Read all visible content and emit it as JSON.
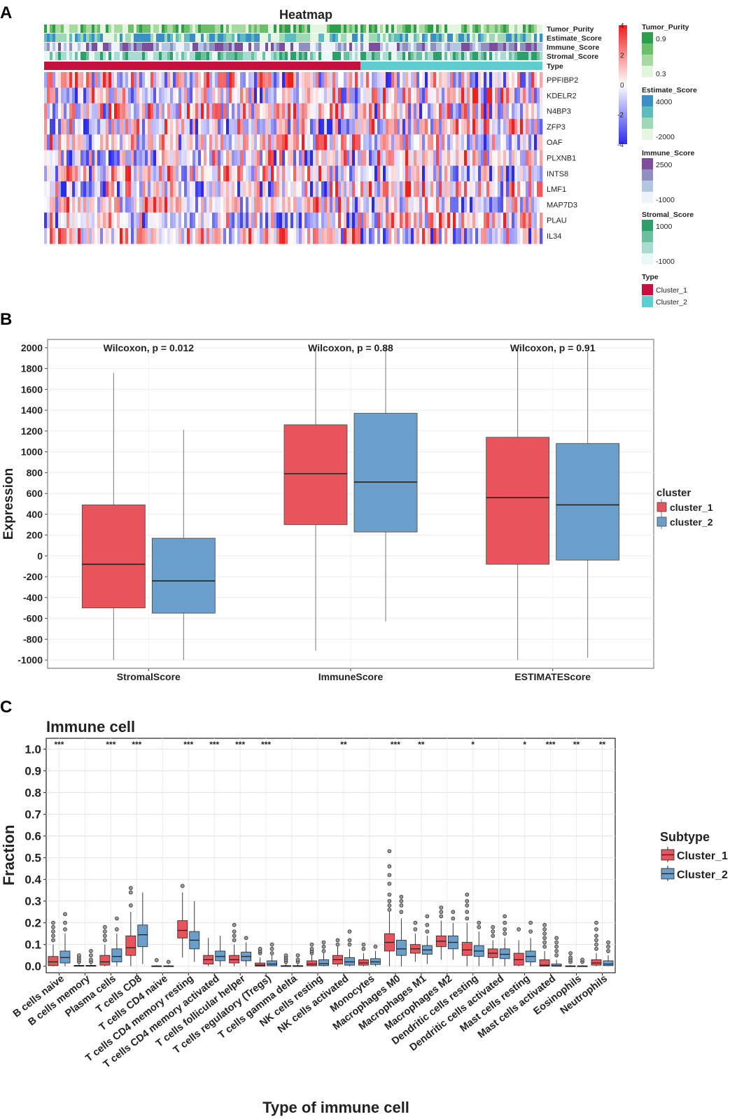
{
  "panel_labels": {
    "a": "A",
    "b": "B",
    "c": "C"
  },
  "colors": {
    "cluster1": "#e8545c",
    "cluster2": "#6a9fcc",
    "type_cluster1": "#c8103e",
    "type_cluster2": "#5fcdcf",
    "heat_low": "#2b2bf0",
    "heat_mid": "#ffffff",
    "heat_high": "#f02020"
  },
  "chart_data": [
    {
      "type": "heatmap",
      "title": "Heatmap",
      "annotation_rows": [
        "Tumor_Purity",
        "Estimate_Score",
        "Immune_Score",
        "Stromal_Score",
        "Type"
      ],
      "genes": [
        "PPFIBP2",
        "KDELR2",
        "N4BP3",
        "ZFP3",
        "OAF",
        "PLXNB1",
        "INTS8",
        "LMF1",
        "MAP7D3",
        "PLAU",
        "IL34"
      ],
      "color_scale": {
        "ticks": [
          4,
          2,
          0,
          -2,
          -4
        ],
        "range": [
          -4,
          4
        ]
      },
      "cluster_split_fraction": 0.635,
      "legends": [
        {
          "title": "Tumor_Purity",
          "high": "0.9",
          "low": "0.3",
          "colors": [
            "#2e9e4e",
            "#6bbf6b",
            "#a6daa0",
            "#e3f4df"
          ]
        },
        {
          "title": "Estimate_Score",
          "high": "4000",
          "low": "-2000",
          "colors": [
            "#3b8fc4",
            "#5fbcbc",
            "#9fd8b4",
            "#e5f5e0"
          ]
        },
        {
          "title": "Immune_Score",
          "high": "2500",
          "low": "-1000",
          "colors": [
            "#7d4e9e",
            "#8f8fc2",
            "#b3c6e2",
            "#eef2fa"
          ]
        },
        {
          "title": "Stromal_Score",
          "high": "1000",
          "low": "-1000",
          "colors": [
            "#2e9e6a",
            "#6cc0a0",
            "#a8dcd0",
            "#eaf7f4"
          ]
        }
      ],
      "type_legend": {
        "title": "Type",
        "items": [
          "Cluster_1",
          "Cluster_2"
        ]
      }
    },
    {
      "type": "box",
      "categories": [
        "StromalScore",
        "ImmuneScore",
        "ESTIMATEScore"
      ],
      "annotations": [
        "Wilcoxon, p = 0.012",
        "Wilcoxon, p = 0.88",
        "Wilcoxon, p = 0.91"
      ],
      "ylabel": "Expression",
      "ylim": [
        -1080,
        2080
      ],
      "yticks": [
        2000,
        1800,
        1600,
        1400,
        1200,
        1000,
        800,
        600,
        400,
        200,
        0,
        -200,
        -400,
        -600,
        -800,
        -1000
      ],
      "legend": {
        "title": "cluster",
        "items": [
          "cluster_1",
          "cluster_2"
        ]
      },
      "series": [
        {
          "name": "cluster_1",
          "boxes": [
            {
              "min": -1000,
              "q1": -500,
              "median": -80,
              "q3": 490,
              "max": 1760
            },
            {
              "min": -910,
              "q1": 300,
              "median": 790,
              "q3": 1260,
              "max": 2000
            },
            {
              "min": -1000,
              "q1": -80,
              "median": 560,
              "q3": 1140,
              "max": 2000
            }
          ]
        },
        {
          "name": "cluster_2",
          "boxes": [
            {
              "min": -1000,
              "q1": -550,
              "median": -240,
              "q3": 170,
              "max": 1210
            },
            {
              "min": -630,
              "q1": 230,
              "median": 710,
              "q3": 1370,
              "max": 2000
            },
            {
              "min": -980,
              "q1": -40,
              "median": 490,
              "q3": 1080,
              "max": 1960
            }
          ]
        }
      ]
    },
    {
      "type": "box",
      "title": "Immune cell",
      "xlabel": "Type of immune cell",
      "ylabel": "Fraction",
      "ylim": [
        -0.03,
        1.05
      ],
      "yticks": [
        "1.0",
        "0.9",
        "0.8",
        "0.7",
        "0.6",
        "0.5",
        "0.4",
        "0.3",
        "0.2",
        "0.1",
        "0.0"
      ],
      "legend": {
        "title": "Subtype",
        "items": [
          "Cluster_1",
          "Cluster_2"
        ]
      },
      "categories": [
        "B cells naive",
        "B cells memory",
        "Plasma cells",
        "T cells CD8",
        "T cells CD4 naive",
        "T cells CD4 memory resting",
        "T cells CD4 memory activated",
        "T cells follicular helper",
        "T cells regulatory (Tregs)",
        "T cells gamma delta",
        "NK cells resting",
        "NK cells activated",
        "Monocytes",
        "Macrophages M0",
        "Macrophages M1",
        "Macrophages M2",
        "Dendritic cells resting",
        "Dendritic cells activated",
        "Mast cells resting",
        "Mast cells activated",
        "Eosinophils",
        "Neutrophils"
      ],
      "significance": [
        "***",
        "",
        "***",
        "***",
        "",
        "***",
        "***",
        "***",
        "***",
        "",
        "",
        "**",
        "",
        "***",
        "**",
        "",
        "*",
        "",
        "*",
        "***",
        "**",
        "**"
      ],
      "series": [
        {
          "name": "Cluster_1",
          "boxes": [
            {
              "min": 0,
              "q1": 0.003,
              "median": 0.02,
              "q3": 0.045,
              "max": 0.1,
              "outliers": [
                0.12,
                0.14,
                0.16,
                0.18,
                0.2
              ]
            },
            {
              "min": 0,
              "q1": 0,
              "median": 0.001,
              "q3": 0.004,
              "max": 0.01,
              "outliers": [
                0.02,
                0.03,
                0.04,
                0.05
              ]
            },
            {
              "min": 0,
              "q1": 0.005,
              "median": 0.02,
              "q3": 0.05,
              "max": 0.1,
              "outliers": [
                0.12,
                0.14,
                0.16,
                0.18
              ]
            },
            {
              "min": 0,
              "q1": 0.05,
              "median": 0.085,
              "q3": 0.14,
              "max": 0.25,
              "outliers": [
                0.28,
                0.34,
                0.36
              ]
            },
            {
              "min": 0,
              "q1": 0,
              "median": 0,
              "q3": 0.002,
              "max": 0.005,
              "outliers": [
                0.028
              ]
            },
            {
              "min": 0.04,
              "q1": 0.13,
              "median": 0.165,
              "q3": 0.21,
              "max": 0.34,
              "outliers": [
                0.37
              ]
            },
            {
              "min": 0,
              "q1": 0.01,
              "median": 0.03,
              "q3": 0.05,
              "max": 0.13,
              "outliers": []
            },
            {
              "min": 0,
              "q1": 0.015,
              "median": 0.03,
              "q3": 0.05,
              "max": 0.1,
              "outliers": [
                0.12,
                0.14,
                0.16,
                0.19
              ]
            },
            {
              "min": 0,
              "q1": 0,
              "median": 0.005,
              "q3": 0.015,
              "max": 0.04,
              "outliers": [
                0.06,
                0.07,
                0.08
              ]
            },
            {
              "min": 0,
              "q1": 0,
              "median": 0,
              "q3": 0.003,
              "max": 0.01,
              "outliers": [
                0.02,
                0.03,
                0.04,
                0.05
              ]
            },
            {
              "min": 0,
              "q1": 0.002,
              "median": 0.01,
              "q3": 0.025,
              "max": 0.05,
              "outliers": [
                0.06,
                0.07,
                0.08,
                0.1
              ]
            },
            {
              "min": 0,
              "q1": 0.01,
              "median": 0.03,
              "q3": 0.05,
              "max": 0.09,
              "outliers": [
                0.1,
                0.12
              ]
            },
            {
              "min": 0,
              "q1": 0.005,
              "median": 0.015,
              "q3": 0.03,
              "max": 0.06,
              "outliers": [
                0.08,
                0.1
              ]
            },
            {
              "min": 0,
              "q1": 0.07,
              "median": 0.11,
              "q3": 0.15,
              "max": 0.25,
              "outliers": [
                0.26,
                0.28,
                0.3,
                0.33,
                0.38,
                0.42,
                0.46,
                0.53
              ]
            },
            {
              "min": 0.02,
              "q1": 0.06,
              "median": 0.08,
              "q3": 0.1,
              "max": 0.15,
              "outliers": [
                0.17,
                0.2
              ]
            },
            {
              "min": 0.03,
              "q1": 0.09,
              "median": 0.115,
              "q3": 0.14,
              "max": 0.21,
              "outliers": [
                0.23,
                0.25,
                0.27
              ]
            },
            {
              "min": 0,
              "q1": 0.05,
              "median": 0.075,
              "q3": 0.11,
              "max": 0.2,
              "outliers": [
                0.22,
                0.25,
                0.28,
                0.3,
                0.33
              ]
            },
            {
              "min": 0,
              "q1": 0.04,
              "median": 0.06,
              "q3": 0.08,
              "max": 0.12,
              "outliers": [
                0.14,
                0.16,
                0.18
              ]
            },
            {
              "min": 0,
              "q1": 0.005,
              "median": 0.03,
              "q3": 0.06,
              "max": 0.12,
              "outliers": [
                0.17
              ]
            },
            {
              "min": 0,
              "q1": 0,
              "median": 0.005,
              "q3": 0.03,
              "max": 0.07,
              "outliers": [
                0.09,
                0.11,
                0.13,
                0.15,
                0.17,
                0.19
              ]
            },
            {
              "min": 0,
              "q1": 0,
              "median": 0,
              "q3": 0.002,
              "max": 0.005,
              "outliers": [
                0.02,
                0.03,
                0.04,
                0.06
              ]
            },
            {
              "min": 0,
              "q1": 0.005,
              "median": 0.015,
              "q3": 0.03,
              "max": 0.06,
              "outliers": [
                0.08,
                0.1,
                0.12,
                0.14,
                0.17,
                0.2
              ]
            }
          ]
        },
        {
          "name": "Cluster_2",
          "boxes": [
            {
              "min": 0,
              "q1": 0.015,
              "median": 0.04,
              "q3": 0.07,
              "max": 0.15,
              "outliers": [
                0.17,
                0.2,
                0.24
              ]
            },
            {
              "min": 0,
              "q1": 0,
              "median": 0.001,
              "q3": 0.004,
              "max": 0.01,
              "outliers": [
                0.02,
                0.03,
                0.05,
                0.07
              ]
            },
            {
              "min": 0,
              "q1": 0.02,
              "median": 0.045,
              "q3": 0.08,
              "max": 0.15,
              "outliers": [
                0.17,
                0.22
              ]
            },
            {
              "min": 0.01,
              "q1": 0.09,
              "median": 0.145,
              "q3": 0.19,
              "max": 0.34,
              "outliers": []
            },
            {
              "min": 0,
              "q1": 0,
              "median": 0,
              "q3": 0.002,
              "max": 0.005,
              "outliers": [
                0.02
              ]
            },
            {
              "min": 0.02,
              "q1": 0.08,
              "median": 0.12,
              "q3": 0.16,
              "max": 0.3,
              "outliers": []
            },
            {
              "min": 0,
              "q1": 0.025,
              "median": 0.045,
              "q3": 0.07,
              "max": 0.14,
              "outliers": []
            },
            {
              "min": 0,
              "q1": 0.025,
              "median": 0.045,
              "q3": 0.065,
              "max": 0.11,
              "outliers": [
                0.13
              ]
            },
            {
              "min": 0,
              "q1": 0.002,
              "median": 0.01,
              "q3": 0.025,
              "max": 0.05,
              "outliers": [
                0.06,
                0.08,
                0.1
              ]
            },
            {
              "min": 0,
              "q1": 0,
              "median": 0,
              "q3": 0.003,
              "max": 0.01,
              "outliers": [
                0.02,
                0.03,
                0.05
              ]
            },
            {
              "min": 0,
              "q1": 0.003,
              "median": 0.012,
              "q3": 0.03,
              "max": 0.06,
              "outliers": [
                0.07,
                0.09,
                0.11
              ]
            },
            {
              "min": 0,
              "q1": 0.005,
              "median": 0.02,
              "q3": 0.04,
              "max": 0.08,
              "outliers": [
                0.1,
                0.12,
                0.16
              ]
            },
            {
              "min": 0,
              "q1": 0.008,
              "median": 0.02,
              "q3": 0.035,
              "max": 0.07,
              "outliers": [
                0.09
              ]
            },
            {
              "min": 0,
              "q1": 0.05,
              "median": 0.08,
              "q3": 0.12,
              "max": 0.22,
              "outliers": [
                0.25,
                0.28,
                0.3,
                0.32
              ]
            },
            {
              "min": 0.01,
              "q1": 0.055,
              "median": 0.075,
              "q3": 0.095,
              "max": 0.14,
              "outliers": [
                0.16,
                0.19,
                0.23
              ]
            },
            {
              "min": 0.03,
              "q1": 0.08,
              "median": 0.11,
              "q3": 0.14,
              "max": 0.2,
              "outliers": [
                0.22,
                0.25
              ]
            },
            {
              "min": 0,
              "q1": 0.045,
              "median": 0.07,
              "q3": 0.095,
              "max": 0.16,
              "outliers": [
                0.18,
                0.2
              ]
            },
            {
              "min": 0,
              "q1": 0.035,
              "median": 0.055,
              "q3": 0.08,
              "max": 0.13,
              "outliers": [
                0.15,
                0.17,
                0.2,
                0.23
              ]
            },
            {
              "min": 0,
              "q1": 0.02,
              "median": 0.045,
              "q3": 0.07,
              "max": 0.13,
              "outliers": [
                0.16,
                0.2
              ]
            },
            {
              "min": 0,
              "q1": 0,
              "median": 0.002,
              "q3": 0.01,
              "max": 0.03,
              "outliers": [
                0.05,
                0.07,
                0.09,
                0.11,
                0.13
              ]
            },
            {
              "min": 0,
              "q1": 0,
              "median": 0,
              "q3": 0.002,
              "max": 0.005,
              "outliers": [
                0.02,
                0.03
              ]
            },
            {
              "min": 0,
              "q1": 0.003,
              "median": 0.01,
              "q3": 0.025,
              "max": 0.05,
              "outliers": [
                0.07,
                0.09,
                0.11
              ]
            }
          ]
        }
      ]
    }
  ]
}
